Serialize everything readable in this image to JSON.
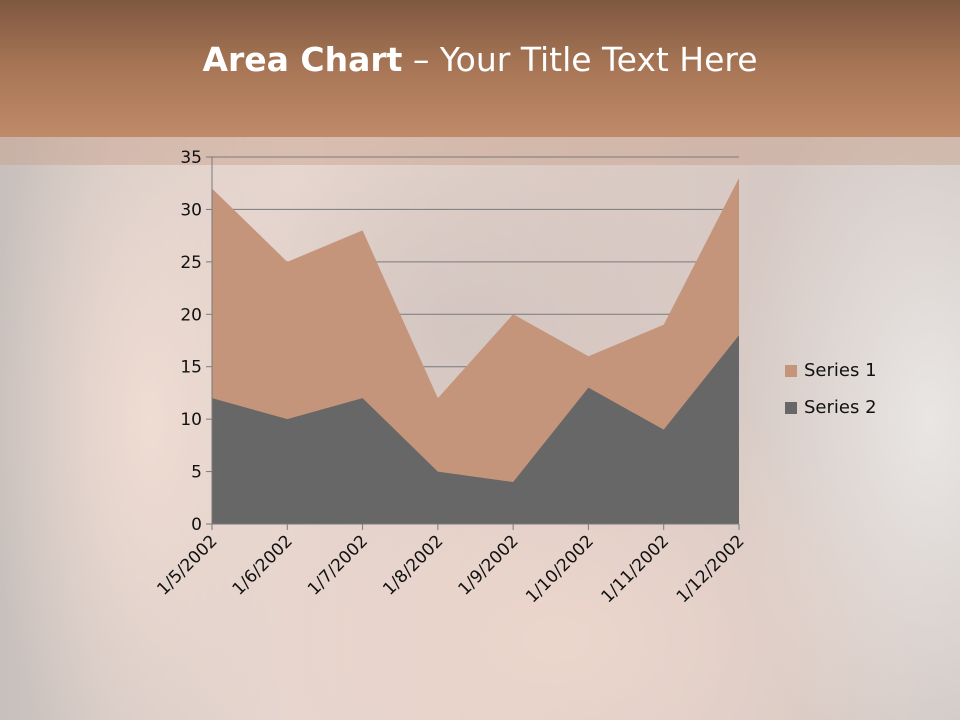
{
  "slide": {
    "title_bold": "Area Chart",
    "title_rest": " – Your Title Text Here"
  },
  "chart_data": {
    "type": "area",
    "title": "",
    "xlabel": "",
    "ylabel": "",
    "categories": [
      "1/5/2002",
      "1/6/2002",
      "1/7/2002",
      "1/8/2002",
      "1/9/2002",
      "1/10/2002",
      "1/11/2002",
      "1/12/2002"
    ],
    "series": [
      {
        "name": "Series 1",
        "color": "#c4957a",
        "values": [
          32,
          25,
          28,
          12,
          20,
          16,
          19,
          33
        ]
      },
      {
        "name": "Series 2",
        "color": "#676767",
        "values": [
          12,
          10,
          12,
          5,
          4,
          13,
          9,
          18
        ]
      }
    ],
    "ylim": [
      0,
      35
    ],
    "yticks": [
      0,
      5,
      10,
      15,
      20,
      25,
      30,
      35
    ],
    "grid": true,
    "stacked": false,
    "legend_position": "right"
  }
}
